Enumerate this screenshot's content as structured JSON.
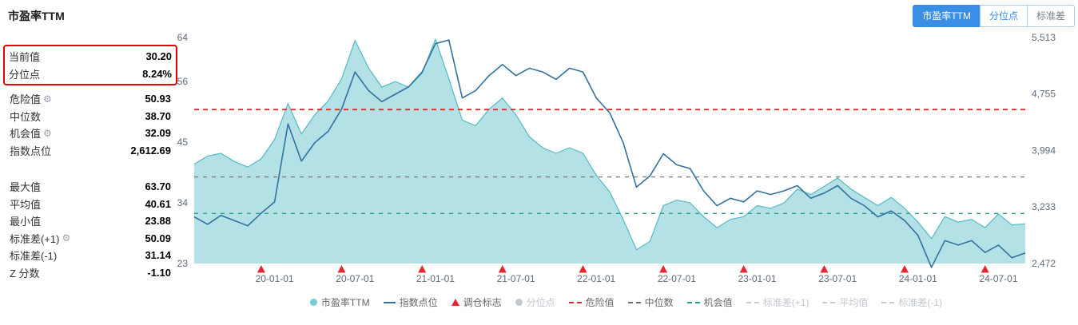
{
  "page": {
    "title": "市盈率TTM"
  },
  "tabs": [
    {
      "label": "市盈率TTM",
      "active": true
    },
    {
      "label": "分位点",
      "active": false
    },
    {
      "label": "标准差",
      "active": false
    }
  ],
  "stats": {
    "highlight": [
      {
        "id": "current-value",
        "label": "当前值",
        "value": "30.20"
      },
      {
        "id": "percentile",
        "label": "分位点",
        "value": "8.24%"
      }
    ],
    "group1": [
      {
        "id": "danger-value",
        "label": "危险值",
        "value": "50.93",
        "gear": true
      },
      {
        "id": "median",
        "label": "中位数",
        "value": "38.70"
      },
      {
        "id": "opportunity-value",
        "label": "机会值",
        "value": "32.09",
        "gear": true
      },
      {
        "id": "index-points",
        "label": "指数点位",
        "value": "2,612.69"
      }
    ],
    "group2": [
      {
        "id": "max-value",
        "label": "最大值",
        "value": "63.70"
      },
      {
        "id": "mean-value",
        "label": "平均值",
        "value": "40.61"
      },
      {
        "id": "min-value",
        "label": "最小值",
        "value": "23.88"
      },
      {
        "id": "std-plus-1",
        "label": "标准差(+1)",
        "value": "50.09",
        "gear": true
      },
      {
        "id": "std-minus-1",
        "label": "标准差(-1)",
        "value": "31.14"
      },
      {
        "id": "z-score",
        "label": "Z 分数",
        "value": "-1.10"
      }
    ]
  },
  "chart_data": {
    "type": "area+line",
    "title": "市盈率TTM",
    "grid": false,
    "legend_position": "bottom",
    "x": [
      "2019-07",
      "2019-08",
      "2019-09",
      "2019-10",
      "2019-11",
      "2019-12",
      "2020-01",
      "2020-02",
      "2020-03",
      "2020-04",
      "2020-05",
      "2020-06",
      "2020-07",
      "2020-08",
      "2020-09",
      "2020-10",
      "2020-11",
      "2020-12",
      "2021-01",
      "2021-02",
      "2021-03",
      "2021-04",
      "2021-05",
      "2021-06",
      "2021-07",
      "2021-08",
      "2021-09",
      "2021-10",
      "2021-11",
      "2021-12",
      "2022-01",
      "2022-02",
      "2022-03",
      "2022-04",
      "2022-05",
      "2022-06",
      "2022-07",
      "2022-08",
      "2022-09",
      "2022-10",
      "2022-11",
      "2022-12",
      "2023-01",
      "2023-02",
      "2023-03",
      "2023-04",
      "2023-05",
      "2023-06",
      "2023-07",
      "2023-08",
      "2023-09",
      "2023-10",
      "2023-11",
      "2023-12",
      "2024-01",
      "2024-02",
      "2024-03",
      "2024-04",
      "2024-05",
      "2024-06",
      "2024-07",
      "2024-08",
      "2024-09"
    ],
    "series": [
      {
        "name": "市盈率TTM",
        "type": "area",
        "axis": "left",
        "fill_color": "#9ed9de",
        "line_color": "#54bac4",
        "values": [
          41.0,
          42.5,
          43.0,
          41.5,
          40.5,
          42.0,
          45.5,
          52.0,
          46.5,
          50.0,
          52.5,
          56.5,
          63.5,
          58.5,
          55.0,
          56.0,
          55.0,
          57.5,
          63.7,
          56.5,
          49.0,
          48.0,
          51.0,
          53.0,
          50.0,
          46.0,
          44.0,
          43.0,
          44.0,
          43.0,
          39.0,
          36.0,
          31.0,
          25.5,
          27.0,
          33.5,
          34.5,
          34.0,
          31.5,
          29.5,
          31.0,
          31.5,
          33.5,
          33.0,
          34.0,
          36.5,
          35.5,
          37.0,
          38.5,
          36.5,
          35.0,
          33.5,
          35.0,
          33.0,
          30.5,
          27.5,
          31.5,
          30.5,
          31.0,
          29.5,
          32.0,
          30.0,
          30.2
        ]
      },
      {
        "name": "指数点位",
        "type": "line",
        "axis": "right",
        "line_color": "#33719f",
        "values": [
          3100,
          3000,
          3120,
          3050,
          2980,
          3150,
          3300,
          4350,
          3850,
          4100,
          4250,
          4550,
          5050,
          4800,
          4650,
          4750,
          4850,
          5050,
          5430,
          5480,
          4700,
          4800,
          5000,
          5150,
          5000,
          5100,
          5050,
          4950,
          5100,
          5050,
          4700,
          4500,
          4100,
          3500,
          3650,
          3950,
          3800,
          3750,
          3450,
          3250,
          3350,
          3300,
          3450,
          3400,
          3450,
          3520,
          3350,
          3420,
          3520,
          3350,
          3250,
          3100,
          3180,
          3050,
          2850,
          2420,
          2780,
          2720,
          2780,
          2620,
          2720,
          2550,
          2613
        ]
      }
    ],
    "markers": {
      "name": "调仓标志",
      "shape": "triangle-up",
      "color": "#e8262d",
      "months": [
        "2019-12",
        "2020-06",
        "2020-12",
        "2021-06",
        "2021-12",
        "2022-06",
        "2022-12",
        "2023-06",
        "2023-12",
        "2024-06"
      ]
    },
    "reference_lines": [
      {
        "id": "danger-value",
        "name": "危险值",
        "value": 50.93,
        "color": "#e02b2b",
        "dash": "6 5",
        "width": 1.8
      },
      {
        "id": "median",
        "name": "中位数",
        "value": 38.7,
        "color": "#808080",
        "dash": "5 6",
        "width": 1.4
      },
      {
        "id": "opportunity-value",
        "name": "机会值",
        "value": 32.09,
        "color": "#2aa18b",
        "dash": "5 6",
        "width": 1.4
      }
    ],
    "left_axis": {
      "label": "市盈率TTM",
      "min": 23,
      "max": 64,
      "ticks": [
        23,
        34,
        45,
        56,
        64
      ]
    },
    "right_axis": {
      "label": "指数点位",
      "min": 2472,
      "max": 5513,
      "ticks": [
        {
          "value": 2472,
          "label": "2,472"
        },
        {
          "value": 3233,
          "label": "3,233"
        },
        {
          "value": 3994,
          "label": "3,994"
        },
        {
          "value": 4755,
          "label": "4,755"
        },
        {
          "value": 5513,
          "label": "5,513"
        }
      ]
    },
    "x_ticks": [
      {
        "label": "20-01-01",
        "month": "2020-01"
      },
      {
        "label": "20-07-01",
        "month": "2020-07"
      },
      {
        "label": "21-01-01",
        "month": "2021-01"
      },
      {
        "label": "21-07-01",
        "month": "2021-07"
      },
      {
        "label": "22-01-01",
        "month": "2022-01"
      },
      {
        "label": "22-07-01",
        "month": "2022-07"
      },
      {
        "label": "23-01-01",
        "month": "2023-01"
      },
      {
        "label": "23-07-01",
        "month": "2023-07"
      },
      {
        "label": "24-01-01",
        "month": "2024-01"
      },
      {
        "label": "24-07-01",
        "month": "2024-07"
      }
    ]
  },
  "legend": [
    {
      "id": "pe-ttm",
      "label": "市盈率TTM",
      "marker": "dot",
      "color": "#76ccd3",
      "active": true
    },
    {
      "id": "index-points",
      "label": "指数点位",
      "marker": "line",
      "color": "#33719f",
      "active": true
    },
    {
      "id": "rebalance-marker",
      "label": "调仓标志",
      "marker": "triangle",
      "color": "#e8262d",
      "active": true
    },
    {
      "id": "percentile",
      "label": "分位点",
      "marker": "dot",
      "color": "#c3c7cf",
      "active": false
    },
    {
      "id": "danger-value",
      "label": "危险值",
      "marker": "dash",
      "color": "#e02b2b",
      "active": true
    },
    {
      "id": "median",
      "label": "中位数",
      "marker": "dash",
      "color": "#6f6f6f",
      "active": true
    },
    {
      "id": "opportunity-value",
      "label": "机会值",
      "marker": "dash",
      "color": "#2aa18b",
      "active": true
    },
    {
      "id": "std-plus-1",
      "label": "标准差(+1)",
      "marker": "dash",
      "color": "#c8ccd4",
      "active": false
    },
    {
      "id": "mean",
      "label": "平均值",
      "marker": "dash",
      "color": "#c8ccd4",
      "active": false
    },
    {
      "id": "std-minus-1",
      "label": "标准差(-1)",
      "marker": "dash",
      "color": "#c8ccd4",
      "active": false
    }
  ]
}
